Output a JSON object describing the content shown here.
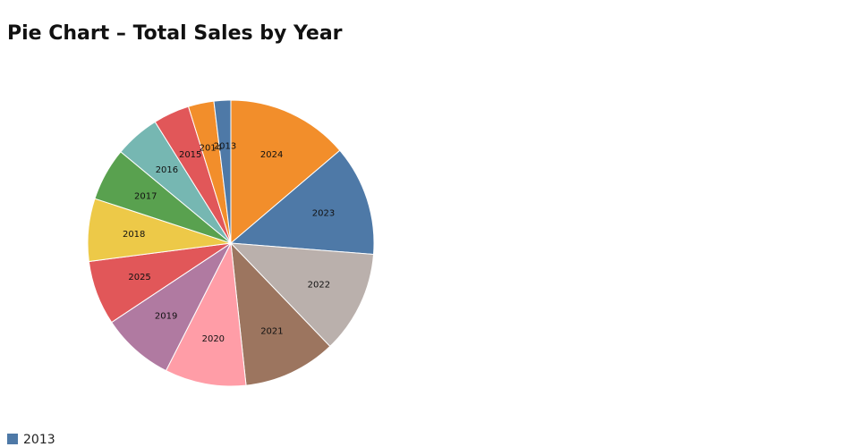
{
  "chart_data": {
    "type": "pie",
    "title": "Pie Chart – Total Sales by Year",
    "categories": [
      "2024",
      "2023",
      "2022",
      "2021",
      "2020",
      "2019",
      "2025",
      "2018",
      "2017",
      "2016",
      "2015",
      "2014",
      "2013"
    ],
    "values": [
      13.8,
      12.5,
      11.6,
      10.5,
      9.2,
      8.2,
      7.3,
      7.1,
      6.0,
      5.1,
      4.1,
      2.9,
      1.9
    ],
    "colors": [
      "#f28e2b",
      "#4e79a7",
      "#bab0ac",
      "#9c755f",
      "#ff9da7",
      "#b07aa1",
      "#e15759",
      "#edc948",
      "#59a14f",
      "#76b7b2",
      "#e15759",
      "#f28e2b",
      "#4e79a7"
    ],
    "legend": "bottom-left"
  }
}
